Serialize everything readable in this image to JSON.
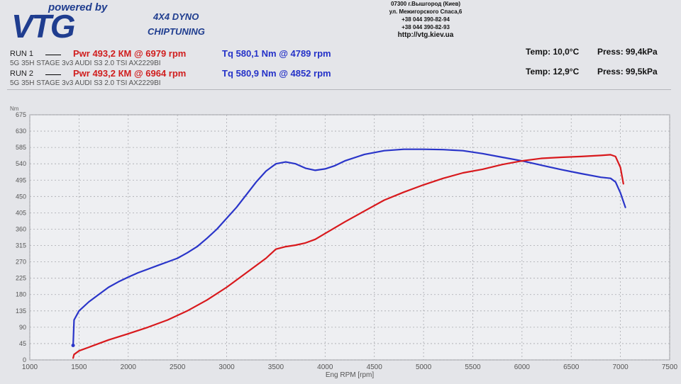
{
  "header": {
    "logo_powered": "powered by",
    "logo_brand": "VTG",
    "logo_dyno": "4X4 DYNO",
    "logo_chiptuning": "CHIPTUNING",
    "address_lines": [
      "07300 г.Вышгород (Киев)",
      "ул. Межигорского Спаса,6",
      "+38 044 390-82-94",
      "+38 044 390-82-93"
    ],
    "url": "http://vtg.kiev.ua"
  },
  "runs": [
    {
      "label": "RUN 1",
      "pwr": "Pwr 493,2 КМ @ 6979 rpm",
      "tq": "Tq 580,1 Nm @ 4789 rpm",
      "desc": "5G 35H STAGE 3v3 AUDI S3 2.0 TSI AX2229BI",
      "temp": "Temp: 10,0°C",
      "press": "Press: 99,4kPa"
    },
    {
      "label": "RUN 2",
      "pwr": "Pwr 493,2 КМ @ 6964 rpm",
      "tq": "Tq 580,9 Nm @ 4852 rpm",
      "desc": "5G 35H STAGE 3v3 AUDI S3 2.0 TSI AX2229BI",
      "temp": "Temp: 12,9°C",
      "press": "Press: 99,5kPa"
    }
  ],
  "chart_data": {
    "type": "line",
    "xlabel": "Eng RPM [rpm]",
    "ylabel": "Nm",
    "xlim": [
      1000,
      7500
    ],
    "ylim": [
      0,
      675
    ],
    "x_ticks": [
      1000,
      1500,
      2000,
      2500,
      3000,
      3500,
      4000,
      4500,
      5000,
      5500,
      6000,
      6500,
      7000,
      7500
    ],
    "y_ticks": [
      0,
      45,
      90,
      135,
      180,
      225,
      270,
      315,
      360,
      405,
      450,
      495,
      540,
      585,
      630,
      675
    ],
    "grid": true,
    "series": [
      {
        "color": "#2a35c9",
        "x": [
          1440,
          1450,
          1500,
          1600,
          1700,
          1800,
          1900,
          2000,
          2100,
          2200,
          2300,
          2400,
          2500,
          2600,
          2700,
          2800,
          2900,
          3000,
          3100,
          3200,
          3300,
          3400,
          3500,
          3600,
          3700,
          3800,
          3900,
          4000,
          4100,
          4200,
          4400,
          4600,
          4800,
          5000,
          5200,
          5400,
          5600,
          5800,
          6000,
          6200,
          6400,
          6600,
          6800,
          6900,
          6950,
          7000,
          7050
        ],
        "y": [
          40,
          110,
          135,
          160,
          180,
          200,
          215,
          228,
          240,
          250,
          260,
          270,
          280,
          295,
          312,
          335,
          360,
          390,
          420,
          455,
          490,
          520,
          540,
          545,
          540,
          528,
          522,
          526,
          535,
          548,
          566,
          576,
          580,
          580,
          579,
          576,
          568,
          558,
          548,
          536,
          524,
          513,
          503,
          500,
          490,
          460,
          420
        ]
      },
      {
        "color": "#d8191d",
        "x": [
          1440,
          1450,
          1500,
          1600,
          1800,
          2000,
          2200,
          2400,
          2600,
          2800,
          3000,
          3200,
          3400,
          3500,
          3600,
          3700,
          3800,
          3900,
          4000,
          4200,
          4400,
          4600,
          4800,
          5000,
          5200,
          5400,
          5600,
          5800,
          6000,
          6200,
          6400,
          6600,
          6800,
          6900,
          6950,
          7000,
          7030
        ],
        "y": [
          5,
          15,
          25,
          35,
          55,
          72,
          90,
          110,
          135,
          165,
          200,
          240,
          280,
          305,
          312,
          316,
          322,
          332,
          348,
          380,
          410,
          440,
          462,
          482,
          500,
          515,
          525,
          538,
          548,
          555,
          558,
          560,
          563,
          565,
          560,
          530,
          485
        ]
      }
    ]
  }
}
